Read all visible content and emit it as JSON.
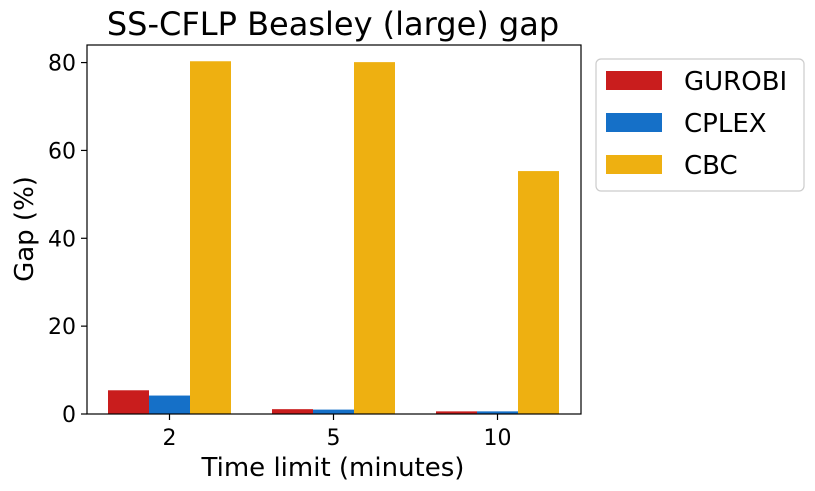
{
  "chart_data": {
    "type": "bar",
    "title": "SS-CFLP Beasley (large) gap",
    "xlabel": "Time limit (minutes)",
    "ylabel": "Gap (%)",
    "categories": [
      "2",
      "5",
      "10"
    ],
    "ylim": [
      0,
      84
    ],
    "yticks": [
      0,
      20,
      40,
      60,
      80
    ],
    "grid": false,
    "legend_position": "outside-top-right",
    "series": [
      {
        "name": "GUROBI",
        "color": "#c91d1d",
        "values": [
          5.4,
          1.1,
          0.6
        ]
      },
      {
        "name": "CPLEX",
        "color": "#1570c8",
        "values": [
          4.2,
          1.0,
          0.6
        ]
      },
      {
        "name": "CBC",
        "color": "#eeb011",
        "values": [
          80.3,
          80.1,
          55.3
        ]
      }
    ]
  }
}
